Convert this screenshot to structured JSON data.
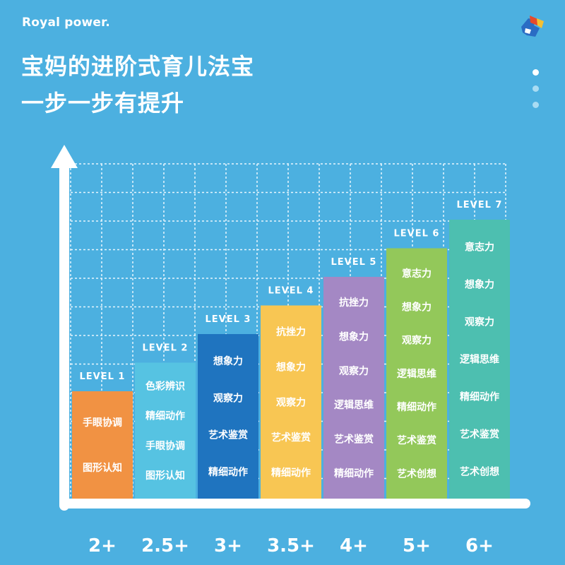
{
  "brand": "Royal power.",
  "title_lines": [
    "宝妈的进阶式育儿法宝",
    "一步一步有提升"
  ],
  "icons": {
    "logo": "puzzle-logo-icon",
    "arrow": "arrow-up-icon"
  },
  "colors": {
    "background": "#4cb0e0",
    "axis": "#ffffff",
    "bars": [
      "#f19243",
      "#56c3e2",
      "#1f74bf",
      "#f8c653",
      "#a488c4",
      "#93c85a",
      "#4dbfb0"
    ]
  },
  "chart_data": {
    "type": "bar",
    "categories": [
      "2+",
      "2.5+",
      "3+",
      "3.5+",
      "4+",
      "5+",
      "6+"
    ],
    "values": [
      1,
      2,
      3,
      4,
      5,
      6,
      7
    ],
    "ylim": [
      0,
      8
    ],
    "grid": true,
    "levels": [
      "LEVEL 1",
      "LEVEL 2",
      "LEVEL 3",
      "LEVEL 4",
      "LEVEL 5",
      "LEVEL 6",
      "LEVEL 7"
    ],
    "skills": [
      [
        "手眼协调",
        "图形认知"
      ],
      [
        "色彩辨识",
        "精细动作",
        "手眼协调",
        "图形认知"
      ],
      [
        "想象力",
        "观察力",
        "艺术鉴赏",
        "精细动作"
      ],
      [
        "抗挫力",
        "想象力",
        "观察力",
        "艺术鉴赏",
        "精细动作"
      ],
      [
        "抗挫力",
        "想象力",
        "观察力",
        "逻辑思维",
        "艺术鉴赏",
        "精细动作"
      ],
      [
        "意志力",
        "想象力",
        "观察力",
        "逻辑思维",
        "精细动作",
        "艺术鉴赏",
        "艺术创想"
      ],
      [
        "意志力",
        "想象力",
        "观察力",
        "逻辑思维",
        "精细动作",
        "艺术鉴赏",
        "艺术创想"
      ]
    ]
  }
}
